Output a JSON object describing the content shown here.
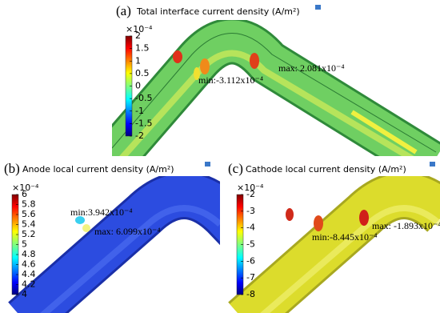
{
  "panels": [
    {
      "label": "(a)",
      "title": "Total interface current density (A/m²)",
      "multiplier": "×10⁻⁴",
      "colorbar_ticks": [
        2,
        1.5,
        1,
        0.5,
        0,
        -0.5,
        -1,
        -1.5,
        -2
      ],
      "annotations": [
        "max: 2.081x10⁻⁴",
        "min:-3.112x10⁻⁴"
      ]
    },
    {
      "label": "(b)",
      "title": "Anode local current density (A/m²)",
      "multiplier": "×10⁻⁴",
      "colorbar_ticks": [
        6,
        5.8,
        5.6,
        5.4,
        5.2,
        5,
        4.8,
        4.6,
        4.4,
        4.2,
        4
      ],
      "annotations": [
        "min:3.942x10⁻⁴",
        "max: 6.099x10⁻⁴"
      ]
    },
    {
      "label": "(c)",
      "title": "Cathode local current density (A/m²)",
      "multiplier": "×10⁻⁴",
      "colorbar_ticks": [
        -2,
        -3,
        -4,
        -5,
        -6,
        -7,
        -8
      ],
      "annotations": [
        "max: -1.893x10⁻⁴",
        "min:-8.445x10⁻⁴"
      ]
    }
  ]
}
